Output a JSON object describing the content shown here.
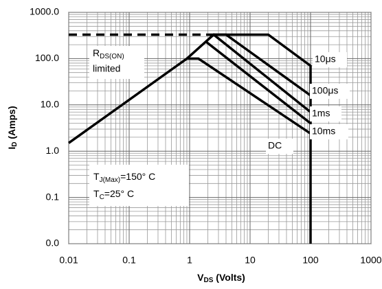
{
  "chart_data": {
    "type": "line",
    "x_scale": "log",
    "y_scale": "log",
    "xlabel": {
      "main": "V",
      "sub": "DS",
      "rest": " (Volts)"
    },
    "ylabel": {
      "main": "I",
      "sub": "D",
      "rest": " (Amps)"
    },
    "xlim": [
      0.01,
      1000
    ],
    "xticks": [
      0.01,
      0.1,
      1,
      10,
      100,
      1000
    ],
    "ylim": [
      0.01,
      1000
    ],
    "yticks": [
      {
        "value": 0.01,
        "label": "0.0"
      },
      {
        "value": 0.1,
        "label": "0.1"
      },
      {
        "value": 1,
        "label": "1.0"
      },
      {
        "value": 10,
        "label": "10.0"
      },
      {
        "value": 100,
        "label": "100.0"
      },
      {
        "value": 1000,
        "label": "1000.0"
      }
    ],
    "grid": true,
    "minor_grid": true,
    "series": [
      {
        "name": "10μs",
        "color": "#000000",
        "x": [
          2.5,
          20,
          100,
          100
        ],
        "values": [
          330,
          330,
          70,
          0.01
        ]
      },
      {
        "name": "100μs",
        "color": "#000000",
        "x": [
          2.5,
          4,
          100
        ],
        "values": [
          330,
          330,
          16
        ]
      },
      {
        "name": "1ms",
        "color": "#000000",
        "x": [
          2.2,
          2.5,
          100
        ],
        "values": [
          290,
          330,
          7
        ]
      },
      {
        "name": "10ms",
        "color": "#000000",
        "x": [
          1.8,
          100
        ],
        "values": [
          240,
          4
        ]
      },
      {
        "name": "DC",
        "color": "#000000",
        "x": [
          0.01,
          0.9,
          1.4,
          100
        ],
        "values": [
          1.5,
          100,
          100,
          2.4
        ]
      },
      {
        "color": "#000000",
        "dashed": true,
        "x": [
          0.01,
          2.5
        ],
        "values": [
          330,
          330
        ]
      },
      {
        "color": "#000000",
        "x": [
          0.9,
          2.5
        ],
        "values": [
          100,
          330
        ]
      }
    ],
    "rds_label": {
      "main": "R",
      "sub": "DS(ON)",
      "line2": "limited"
    },
    "temp_label": {
      "line1": {
        "main": "T",
        "sub": "J(Max)",
        "rest": "=150° C"
      },
      "line2": {
        "main": "T",
        "sub": "C",
        "rest": "=25° C"
      }
    }
  }
}
